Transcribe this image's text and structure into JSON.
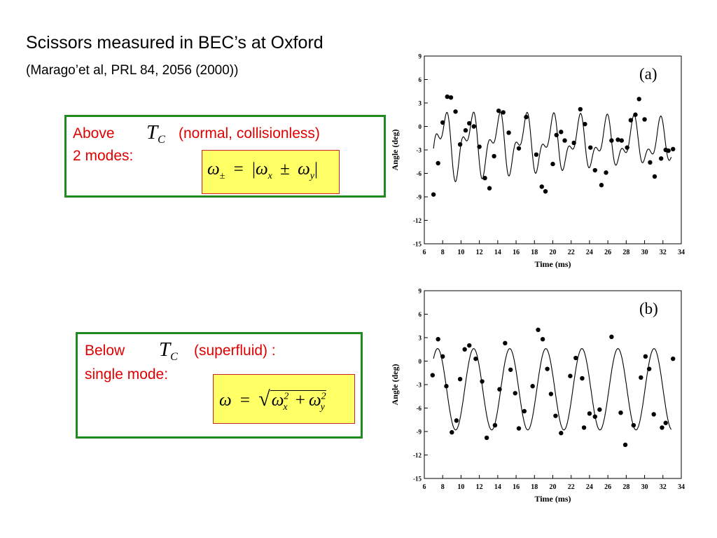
{
  "slide": {
    "title": "Scissors measured in BEC’s at Oxford",
    "subtitle": "(Marago’et al, PRL 84, 2056 (2000))"
  },
  "above_box": {
    "word": "Above",
    "tc_main": "T",
    "tc_sub": "C",
    "qualifier": "(normal, collisionless)",
    "modes": "2 modes:",
    "formula": {
      "omega": "ω",
      "pm_sub": "±",
      "eq": "=",
      "bar": "|",
      "x_sub": "x",
      "pm": "±",
      "y_sub": "y"
    }
  },
  "below_box": {
    "word": "Below",
    "tc_main": "T",
    "tc_sub": "C",
    "qualifier": "(superfluid) :",
    "modes": "single mode:",
    "formula": {
      "omega": "ω",
      "eq": "=",
      "sqrt": "√",
      "x_sub": "x",
      "y_sub": "y",
      "sup2": "2",
      "plus": "+"
    }
  },
  "colors": {
    "box_border": "#1f8a1f",
    "label_red": "#e00000",
    "formula_fill": "#ffff66",
    "formula_border": "#c8222a"
  },
  "chart_data": [
    {
      "type": "scatter",
      "panel": "(a)",
      "xlabel": "Time (ms)",
      "ylabel": "Angle (deg)",
      "xlim": [
        6,
        34
      ],
      "ylim": [
        -15,
        9
      ],
      "xticks": [
        6,
        8,
        10,
        12,
        14,
        16,
        18,
        20,
        22,
        24,
        26,
        28,
        30,
        32,
        34
      ],
      "yticks": [
        9,
        6,
        3,
        0,
        -3,
        -6,
        -9,
        -12,
        -15
      ],
      "grid": false,
      "legend": "none",
      "points": [
        [
          7.0,
          -8.7
        ],
        [
          7.5,
          -4.7
        ],
        [
          8.0,
          0.5
        ],
        [
          8.5,
          3.8
        ],
        [
          8.9,
          3.7
        ],
        [
          9.4,
          1.9
        ],
        [
          9.9,
          -2.3
        ],
        [
          10.5,
          -0.5
        ],
        [
          10.9,
          0.4
        ],
        [
          11.4,
          0.0
        ],
        [
          12.0,
          -2.6
        ],
        [
          12.6,
          -6.6
        ],
        [
          13.1,
          -7.9
        ],
        [
          13.6,
          -3.8
        ],
        [
          14.1,
          2.0
        ],
        [
          14.6,
          1.8
        ],
        [
          15.2,
          -0.8
        ],
        [
          16.3,
          -2.8
        ],
        [
          17.1,
          1.2
        ],
        [
          18.2,
          -3.6
        ],
        [
          18.8,
          -7.7
        ],
        [
          19.2,
          -8.3
        ],
        [
          20.0,
          -4.8
        ],
        [
          20.4,
          -1.1
        ],
        [
          20.9,
          -0.7
        ],
        [
          21.3,
          -1.8
        ],
        [
          22.3,
          -2.1
        ],
        [
          23.0,
          2.2
        ],
        [
          23.5,
          0.3
        ],
        [
          24.1,
          -2.7
        ],
        [
          24.6,
          -5.6
        ],
        [
          25.3,
          -7.5
        ],
        [
          25.8,
          -5.9
        ],
        [
          26.4,
          -1.8
        ],
        [
          27.1,
          -1.7
        ],
        [
          27.5,
          -1.8
        ],
        [
          28.1,
          -2.7
        ],
        [
          28.5,
          0.8
        ],
        [
          29.0,
          1.5
        ],
        [
          29.4,
          3.5
        ],
        [
          30.0,
          0.9
        ],
        [
          30.6,
          -4.6
        ],
        [
          31.1,
          -6.4
        ],
        [
          31.8,
          -4.1
        ],
        [
          32.3,
          -3.0
        ],
        [
          32.6,
          -3.1
        ],
        [
          33.1,
          -2.9
        ]
      ],
      "fit_curve": "damped two-frequency oscillation"
    },
    {
      "type": "scatter",
      "panel": "(b)",
      "xlabel": "Time (ms)",
      "ylabel": "Angle (deg)",
      "xlim": [
        6,
        34
      ],
      "ylim": [
        -15,
        9
      ],
      "xticks": [
        6,
        8,
        10,
        12,
        14,
        16,
        18,
        20,
        22,
        24,
        26,
        28,
        30,
        32,
        34
      ],
      "yticks": [
        9,
        6,
        3,
        0,
        -3,
        -6,
        -9,
        -12,
        -15
      ],
      "grid": false,
      "legend": "none",
      "points": [
        [
          6.9,
          -1.8
        ],
        [
          7.5,
          2.8
        ],
        [
          8.0,
          0.6
        ],
        [
          8.4,
          -3.2
        ],
        [
          9.0,
          -9.1
        ],
        [
          9.5,
          -7.6
        ],
        [
          9.9,
          -2.3
        ],
        [
          10.4,
          1.5
        ],
        [
          10.9,
          2.0
        ],
        [
          11.6,
          0.3
        ],
        [
          12.3,
          -2.6
        ],
        [
          12.8,
          -9.8
        ],
        [
          13.7,
          -8.2
        ],
        [
          14.2,
          -3.6
        ],
        [
          14.8,
          2.3
        ],
        [
          15.4,
          -1.1
        ],
        [
          15.9,
          -4.1
        ],
        [
          16.3,
          -8.6
        ],
        [
          16.9,
          -6.4
        ],
        [
          17.8,
          -3.2
        ],
        [
          18.4,
          4.0
        ],
        [
          18.9,
          2.8
        ],
        [
          19.4,
          -1.0
        ],
        [
          19.8,
          -4.2
        ],
        [
          20.3,
          -7.0
        ],
        [
          20.9,
          -9.2
        ],
        [
          21.9,
          -1.9
        ],
        [
          22.5,
          0.4
        ],
        [
          23.2,
          -2.2
        ],
        [
          23.4,
          -8.5
        ],
        [
          24.0,
          -6.7
        ],
        [
          24.6,
          -7.1
        ],
        [
          25.1,
          -6.2
        ],
        [
          26.4,
          3.1
        ],
        [
          27.4,
          -6.6
        ],
        [
          27.9,
          -10.7
        ],
        [
          28.8,
          -8.2
        ],
        [
          29.6,
          -2.1
        ],
        [
          30.1,
          0.6
        ],
        [
          30.5,
          -1.0
        ],
        [
          31.0,
          -6.8
        ],
        [
          31.9,
          -8.5
        ],
        [
          32.3,
          -7.9
        ],
        [
          33.1,
          0.3
        ]
      ],
      "fit_curve": "single-frequency oscillation"
    }
  ]
}
